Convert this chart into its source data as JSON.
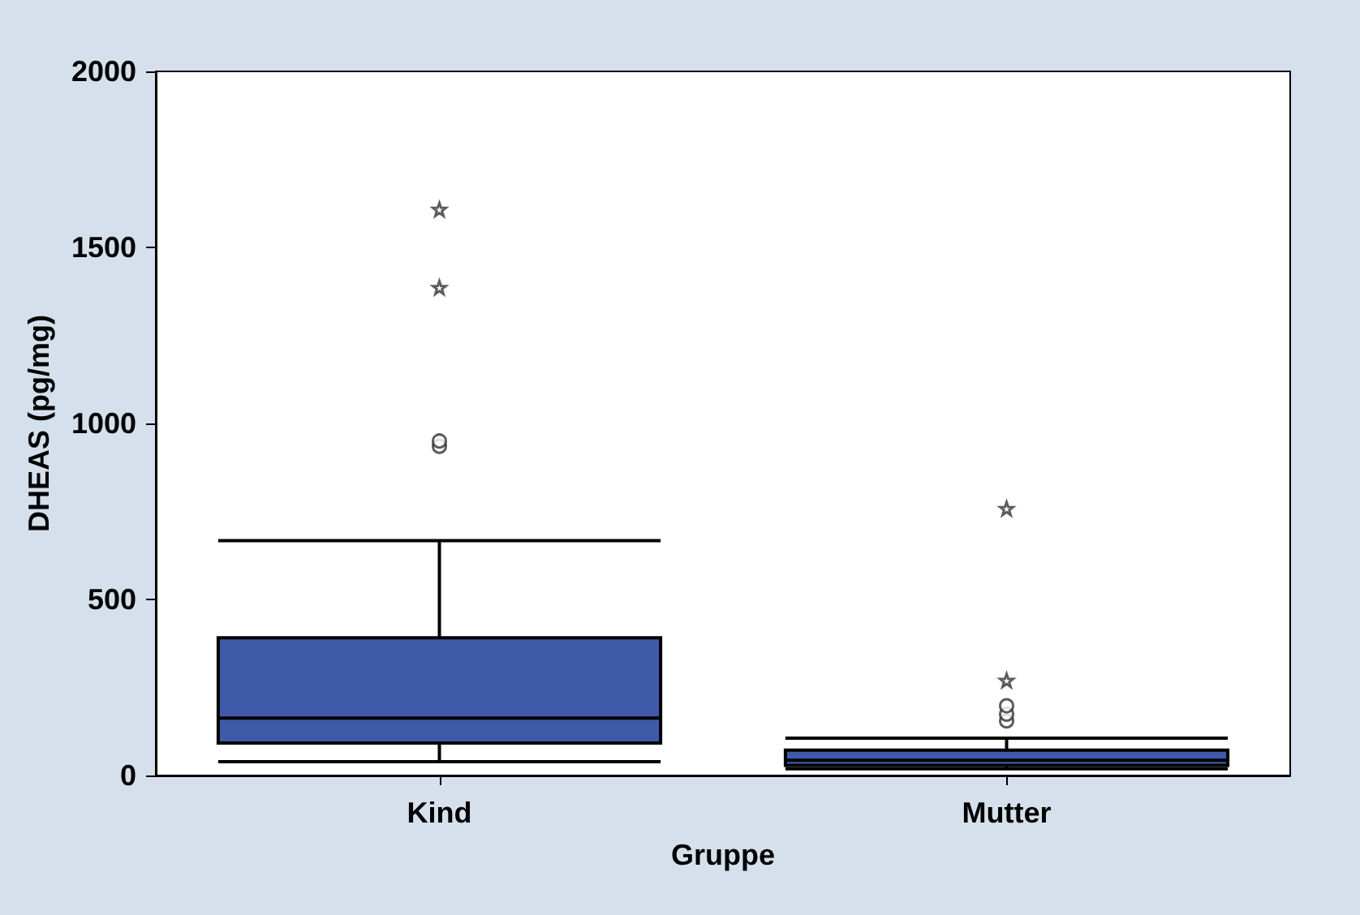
{
  "chart_data": {
    "type": "box",
    "xlabel": "Gruppe",
    "ylabel": "DHEAS (pg/mg)",
    "categories": [
      "Kind",
      "Mutter"
    ],
    "series": [
      {
        "color": "#3f5aa8",
        "boxes": [
          {
            "low": 39,
            "q1": 92,
            "median": 163,
            "q3": 391,
            "high": 667,
            "outliers": [
              935,
              950,
              1386,
              1608
            ]
          },
          {
            "low": 19,
            "q1": 29,
            "median": 43,
            "q3": 72,
            "high": 106,
            "outliers": [
              155,
              174,
              198,
              270,
              758
            ]
          }
        ]
      }
    ],
    "ylim": [
      0,
      2000
    ],
    "yticks": [
      0,
      500,
      1000,
      1500,
      2000
    ],
    "grid": false
  }
}
